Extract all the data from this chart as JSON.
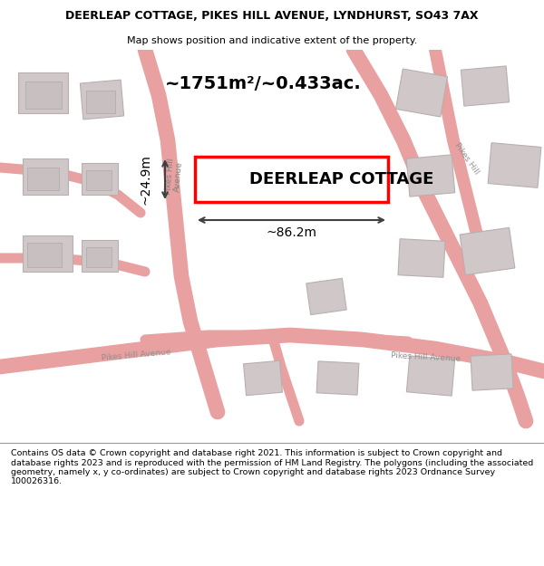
{
  "title_line1": "DEERLEAP COTTAGE, PIKES HILL AVENUE, LYNDHURST, SO43 7AX",
  "title_line2": "Map shows position and indicative extent of the property.",
  "footer_text": "Contains OS data © Crown copyright and database right 2021. This information is subject to Crown copyright and database rights 2023 and is reproduced with the permission of HM Land Registry. The polygons (including the associated geometry, namely x, y co-ordinates) are subject to Crown copyright and database rights 2023 Ordnance Survey 100026316.",
  "bg_color": "#f5f0f0",
  "road_color": "#e8a0a0",
  "highlight_color": "#ff0000",
  "area_label": "~1751m²/~0.433ac.",
  "property_label": "DEERLEAP COTTAGE",
  "dim_width": "~86.2m",
  "dim_height": "~24.9m"
}
